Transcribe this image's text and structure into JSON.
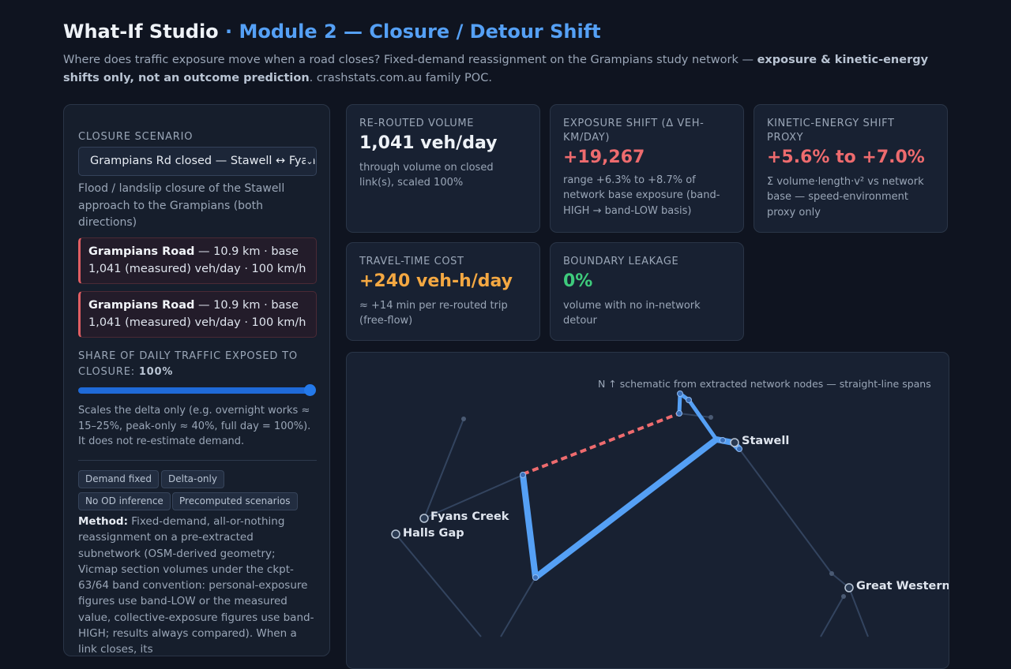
{
  "header": {
    "app_title": "What-If Studio",
    "module_title": "· Module 2 — Closure / Detour Shift",
    "subtitle_pre": "Where does traffic exposure move when a road closes? Fixed-demand reassignment on the Grampians study network — ",
    "subtitle_bold": "exposure & kinetic-energy shifts only, not an outcome prediction",
    "subtitle_post": ". crashstats.com.au family POC."
  },
  "sidebar": {
    "scenario_label": "Closure scenario",
    "scenario_selected": "Grampians Rd closed — Stawell ↔ Fyans Creek",
    "scenario_description": "Flood / landslip closure of the Stawell approach to the Grampians (both directions)",
    "closed_links": [
      {
        "road": "Grampians Road",
        "detail": " — 10.9 km · base 1,041 (measured) veh/day · 100 km/h"
      },
      {
        "road": "Grampians Road",
        "detail": " — 10.9 km · base 1,041 (measured) veh/day · 100 km/h"
      }
    ],
    "share_label": "Share of daily traffic exposed to closure:",
    "share_value": "100%",
    "share_fraction": 1.0,
    "share_note": "Scales the delta only (e.g. overnight works ≈ 15–25%, peak-only ≈ 40%, full day = 100%). It does not re-estimate demand.",
    "chips": [
      "Demand fixed",
      "Delta-only",
      "No OD inference",
      "Precomputed scenarios"
    ],
    "method_label": "Method:",
    "method_text": " Fixed-demand, all-or-nothing reassignment on a pre-extracted subnetwork (OSM-derived geometry; Vicmap section volumes under the ckpt-63/64 band convention: personal-exposure figures use band-LOW or the measured value, collective-exposure figures use band-HIGH; results always compared). When a link closes, its"
  },
  "metrics": {
    "rerouted": {
      "label": "Re-routed volume",
      "value": "1,041 veh/day",
      "note": "through volume on closed link(s), scaled 100%"
    },
    "exposure": {
      "label": "Exposure shift (Δ veh-km/day)",
      "value": "+19,267",
      "note": "range +6.3% to +8.7% of network base exposure (band-HIGH → band-LOW basis)"
    },
    "kinetic": {
      "label": "Kinetic-energy shift proxy",
      "value": "+5.6% to +7.0%",
      "note": "Σ volume·length·v² vs network base — speed-environment proxy only"
    },
    "travel_time": {
      "label": "Travel-time cost",
      "value": "+240 veh-h/day",
      "note": "≈ +14 min per re-routed trip (free-flow)"
    },
    "leakage": {
      "label": "Boundary leakage",
      "value": "0%",
      "note": "volume with no in-network detour"
    }
  },
  "colors": {
    "accent": "#55a0f5",
    "red": "#ee6b6e",
    "orange": "#f4a842",
    "green": "#3ecb7c",
    "white": "#eef2f7"
  },
  "map": {
    "note": "N ↑ schematic from extracted network nodes — straight-line spans",
    "towns": [
      "Stawell",
      "Fyans Creek",
      "Halls Gap",
      "Great Western"
    ]
  }
}
